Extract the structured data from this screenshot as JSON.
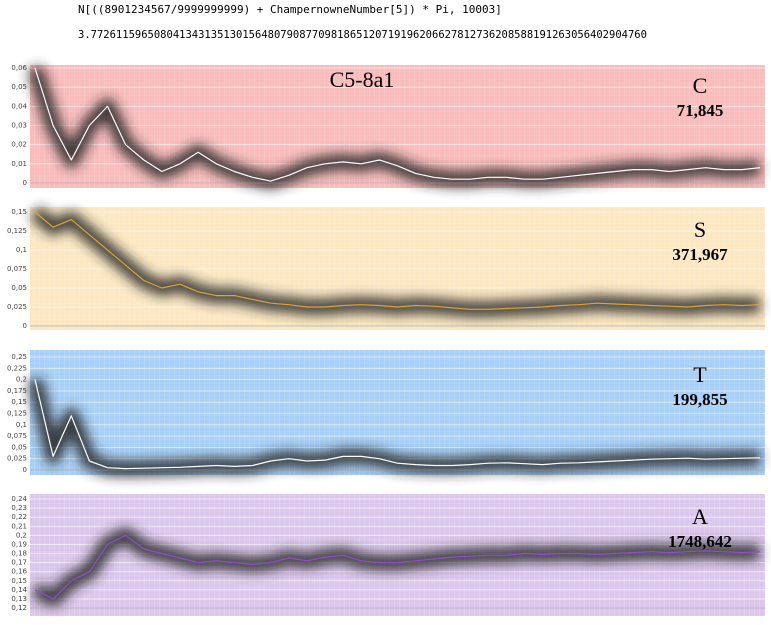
{
  "header": {
    "code": "N[((8901234567/9999999999) + ChampernowneNumber[5]) * Pi, 10003]",
    "result": "3.7726115965080413431351301564807908770981865120719196206627812736208588191263056402904760"
  },
  "chart_data": [
    {
      "type": "line",
      "title": "C5-8a1",
      "label": "C",
      "count": "71,845",
      "background": "#f8bcbc",
      "color": "#ffffff",
      "grid": true,
      "ylim": [
        0,
        0.06
      ],
      "yticks": [
        0,
        {
          "value": 0.01,
          "label": "0,01"
        },
        {
          "value": 0.02,
          "label": "0,02"
        },
        {
          "value": 0.03,
          "label": "0,03"
        },
        {
          "value": 0.04,
          "label": "0,04"
        },
        {
          "value": 0.05,
          "label": "0,05"
        },
        {
          "value": 0.06,
          "label": "0,06"
        }
      ],
      "values": [
        0.06,
        0.03,
        0.012,
        0.03,
        0.04,
        0.02,
        0.012,
        0.006,
        0.01,
        0.016,
        0.01,
        0.006,
        0.003,
        0.001,
        0.004,
        0.008,
        0.01,
        0.011,
        0.01,
        0.012,
        0.009,
        0.005,
        0.003,
        0.002,
        0.002,
        0.003,
        0.003,
        0.002,
        0.002,
        0.003,
        0.004,
        0.005,
        0.006,
        0.007,
        0.007,
        0.006,
        0.007,
        0.008,
        0.007,
        0.007,
        0.008
      ]
    },
    {
      "type": "line",
      "label": "S",
      "count": "371,967",
      "background": "#fbe8c2",
      "color": "#d9a53c",
      "grid": true,
      "ylim": [
        0,
        0.15
      ],
      "yticks": [
        0,
        {
          "value": 0.025,
          "label": "0,025"
        },
        {
          "value": 0.05,
          "label": "0,05"
        },
        {
          "value": 0.075,
          "label": "0,075"
        },
        {
          "value": 0.1,
          "label": "0,1"
        },
        {
          "value": 0.125,
          "label": "0,125"
        },
        {
          "value": 0.15,
          "label": "0,15"
        }
      ],
      "values": [
        0.15,
        0.13,
        0.14,
        0.12,
        0.1,
        0.08,
        0.06,
        0.05,
        0.055,
        0.045,
        0.04,
        0.04,
        0.035,
        0.03,
        0.028,
        0.025,
        0.025,
        0.027,
        0.028,
        0.027,
        0.025,
        0.027,
        0.026,
        0.024,
        0.022,
        0.022,
        0.023,
        0.024,
        0.025,
        0.027,
        0.028,
        0.03,
        0.029,
        0.028,
        0.027,
        0.026,
        0.025,
        0.027,
        0.028,
        0.027,
        0.028
      ]
    },
    {
      "type": "line",
      "label": "T",
      "count": "199,855",
      "background": "#a8d0f6",
      "color": "#ffffff",
      "grid": true,
      "ylim": [
        0,
        0.25
      ],
      "yticks": [
        0,
        {
          "value": 0.025,
          "label": "0,025"
        },
        {
          "value": 0.05,
          "label": "0,05"
        },
        {
          "value": 0.075,
          "label": "0,075"
        },
        {
          "value": 0.1,
          "label": "0,1"
        },
        {
          "value": 0.125,
          "label": "0,125"
        },
        {
          "value": 0.15,
          "label": "0,15"
        },
        {
          "value": 0.175,
          "label": "0,175"
        },
        {
          "value": 0.2,
          "label": "0,2"
        },
        {
          "value": 0.225,
          "label": "0,225"
        },
        {
          "value": 0.25,
          "label": "0,25"
        }
      ],
      "values": [
        0.2,
        0.03,
        0.12,
        0.02,
        0.005,
        0.003,
        0.004,
        0.005,
        0.006,
        0.008,
        0.01,
        0.008,
        0.01,
        0.02,
        0.025,
        0.02,
        0.022,
        0.03,
        0.03,
        0.025,
        0.015,
        0.012,
        0.01,
        0.01,
        0.012,
        0.015,
        0.016,
        0.014,
        0.012,
        0.015,
        0.016,
        0.018,
        0.02,
        0.022,
        0.024,
        0.025,
        0.026,
        0.024,
        0.025,
        0.026,
        0.027
      ]
    },
    {
      "type": "line",
      "label": "A",
      "count": "1748,642",
      "background": "#dcc7ec",
      "color": "#8c52c4",
      "grid": true,
      "ylim": [
        0.12,
        0.24
      ],
      "yticks": [
        {
          "value": 0.12,
          "label": "0,12"
        },
        {
          "value": 0.13,
          "label": "0,13"
        },
        {
          "value": 0.14,
          "label": "0,14"
        },
        {
          "value": 0.15,
          "label": "0,15"
        },
        {
          "value": 0.16,
          "label": "0,16"
        },
        {
          "value": 0.17,
          "label": "0,17"
        },
        {
          "value": 0.18,
          "label": "0,18"
        },
        {
          "value": 0.19,
          "label": "0,19"
        },
        {
          "value": 0.2,
          "label": "0,2"
        },
        {
          "value": 0.21,
          "label": "0,21"
        },
        {
          "value": 0.22,
          "label": "0,22"
        },
        {
          "value": 0.23,
          "label": "0,23"
        },
        {
          "value": 0.24,
          "label": "0,24"
        }
      ],
      "values": [
        0.14,
        0.13,
        0.15,
        0.16,
        0.19,
        0.2,
        0.185,
        0.18,
        0.175,
        0.17,
        0.172,
        0.17,
        0.168,
        0.17,
        0.175,
        0.172,
        0.176,
        0.178,
        0.172,
        0.17,
        0.17,
        0.172,
        0.174,
        0.176,
        0.177,
        0.178,
        0.178,
        0.18,
        0.179,
        0.18,
        0.18,
        0.179,
        0.18,
        0.181,
        0.182,
        0.181,
        0.182,
        0.183,
        0.182,
        0.181,
        0.182
      ]
    }
  ]
}
